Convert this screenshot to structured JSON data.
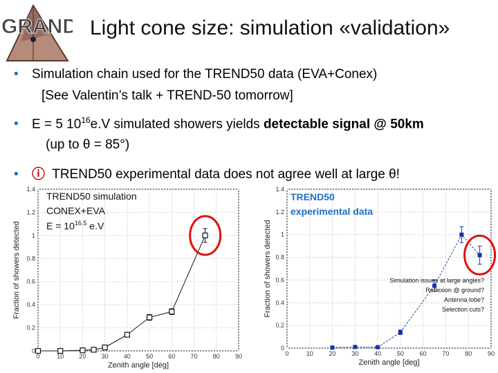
{
  "slide": {
    "logo_text": "GRAND",
    "title": "Light cone size: simulation «validation»",
    "bullets": [
      {
        "text": "Simulation chain used for the TREND50 data (EVA+Conex)",
        "cont": "[See Valentin’s talk + TREND-50 tomorrow]"
      },
      {
        "pre": "E = 5 10",
        "sup": "16",
        "mid": "e.V simulated showers yields ",
        "bold": "detectable signal @ 50km",
        "cont": "(up to θ = 85°)"
      },
      {
        "icon": "ⓘ",
        "text": "TREND50 experimental data does not agree well at large θ!"
      }
    ]
  },
  "chart_data": [
    {
      "type": "scatter",
      "ylabel": "Fraction of showers detected",
      "xlabel": "Zenith angle [deg]",
      "xlim": [
        0,
        90
      ],
      "ylim": [
        0,
        1.4
      ],
      "xticks": [
        "0",
        "10",
        "20",
        "30",
        "40",
        "50",
        "60",
        "70",
        "80",
        "90"
      ],
      "yticks": [
        "0",
        "0.2",
        "0.4",
        "0.6",
        "0.8",
        "1",
        "1.2",
        "1.4"
      ],
      "legend": [
        "TREND50 simulation",
        "CONEX+EVA"
      ],
      "energy_label": {
        "pre": "E = 10",
        "sup": "16.5",
        "post": " e.V"
      },
      "points": [
        {
          "x": 0,
          "y": 0.0,
          "err": 0.01
        },
        {
          "x": 10,
          "y": 0.0,
          "err": 0.01
        },
        {
          "x": 20,
          "y": 0.005,
          "err": 0.01
        },
        {
          "x": 25,
          "y": 0.01,
          "err": 0.01
        },
        {
          "x": 30,
          "y": 0.03,
          "err": 0.01
        },
        {
          "x": 40,
          "y": 0.14,
          "err": 0.015
        },
        {
          "x": 50,
          "y": 0.29,
          "err": 0.025
        },
        {
          "x": 60,
          "y": 0.34,
          "err": 0.025
        },
        {
          "x": 75,
          "y": 1.0,
          "err": 0.06
        }
      ],
      "highlight_x": 75
    },
    {
      "type": "scatter",
      "ylabel": "Fraction of showers detected",
      "xlabel": "Zenith angle [deg]",
      "xlim": [
        0,
        90
      ],
      "ylim": [
        0,
        1.4
      ],
      "xticks": [
        "0",
        "10",
        "20",
        "30",
        "40",
        "50",
        "60",
        "70",
        "80",
        "90"
      ],
      "yticks": [
        "0",
        "0.2",
        "0.4",
        "0.6",
        "0.8",
        "1",
        "1.2",
        "1.4"
      ],
      "legend": [
        "TREND50",
        "experimental data"
      ],
      "points": [
        {
          "x": 20,
          "y": 0.005,
          "err": 0.01
        },
        {
          "x": 30,
          "y": 0.01,
          "err": 0.01
        },
        {
          "x": 40,
          "y": 0.008,
          "err": 0.01
        },
        {
          "x": 50,
          "y": 0.14,
          "err": 0.02
        },
        {
          "x": 65,
          "y": 0.55,
          "err": 0.05
        },
        {
          "x": 77,
          "y": 1.0,
          "err": 0.07
        },
        {
          "x": 85,
          "y": 0.82,
          "err": 0.08
        }
      ],
      "highlight_x": 85,
      "annotation": [
        "Simulation issues at large angles?",
        "Reflexion @ ground?",
        "Antenna lobe?",
        "Selection cuts?"
      ]
    }
  ]
}
